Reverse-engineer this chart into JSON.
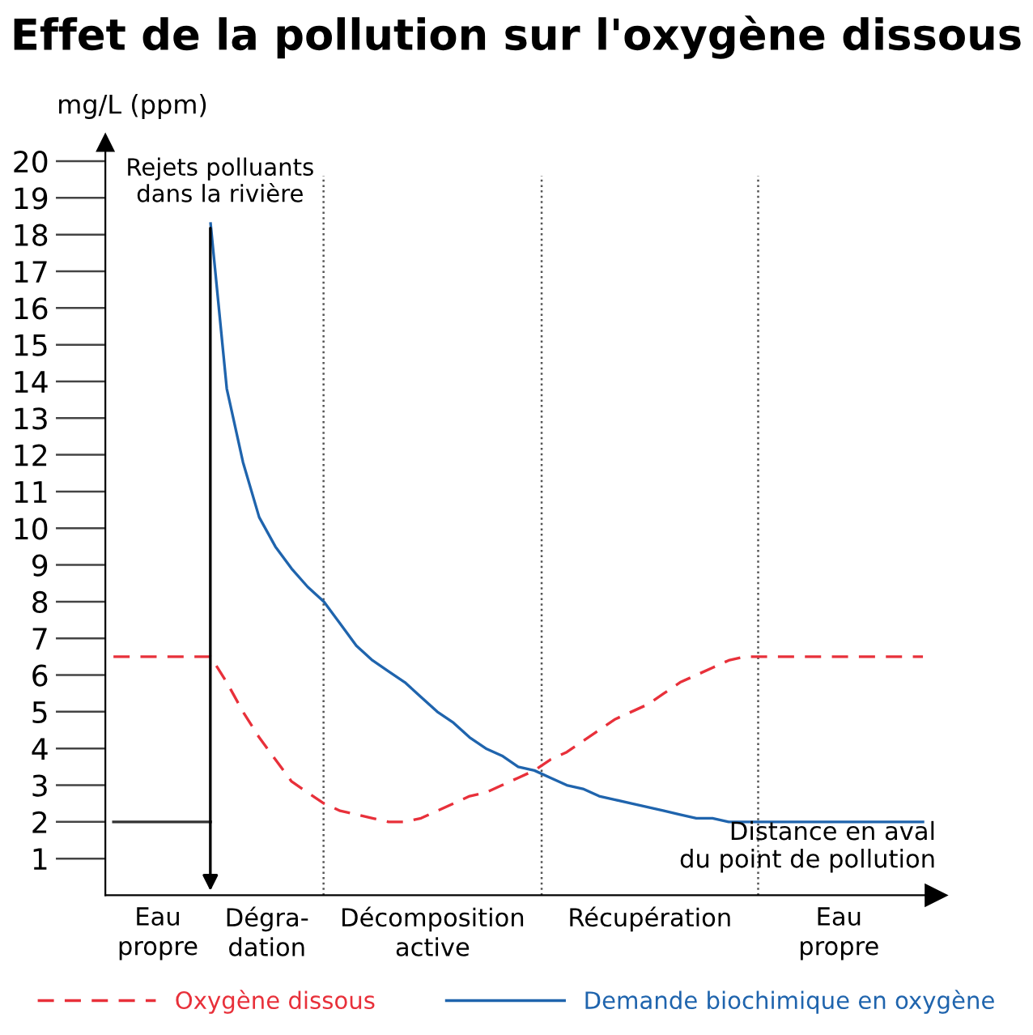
{
  "chart_data": {
    "type": "line",
    "title": "Effet de la pollution sur l'oxygène dissous",
    "ylabel": "mg/L (ppm)",
    "xlabel": "Distance en aval\ndu point de pollution",
    "categories": [
      null,
      null,
      null,
      null,
      null,
      null,
      null,
      null,
      null,
      null,
      null,
      null,
      null,
      null,
      null,
      null,
      null,
      null,
      null,
      null,
      null,
      null,
      null,
      null,
      null,
      null,
      null,
      null,
      null,
      null,
      null,
      null,
      null,
      null,
      null,
      null,
      null,
      null,
      null,
      null,
      null,
      null,
      null,
      null,
      null,
      null,
      null,
      null,
      null,
      null,
      null
    ],
    "ylim": [
      0,
      20.5
    ],
    "yticks": [
      1,
      2,
      3,
      4,
      5,
      6,
      7,
      8,
      9,
      10,
      11,
      12,
      13,
      14,
      15,
      16,
      17,
      18,
      19,
      20
    ],
    "grid": false,
    "legend": "bottom",
    "marker": "none",
    "series": [
      {
        "name": "Oxygène dissous",
        "color": "#e8303a",
        "line_style": "dashed",
        "values": [
          6.5,
          6.5,
          6.5,
          6.5,
          6.5,
          6.5,
          6.5,
          5.8,
          5.0,
          4.3,
          3.7,
          3.1,
          2.8,
          2.5,
          2.3,
          2.2,
          2.1,
          2.0,
          2.0,
          2.1,
          2.3,
          2.5,
          2.7,
          2.8,
          3.0,
          3.2,
          3.4,
          3.7,
          3.9,
          4.2,
          4.5,
          4.8,
          5.0,
          5.2,
          5.5,
          5.8,
          6.0,
          6.2,
          6.4,
          6.5,
          6.5,
          6.5,
          6.5,
          6.5,
          6.5,
          6.5,
          6.5,
          6.5,
          6.5,
          6.5,
          6.5
        ]
      },
      {
        "name": "Demande biochimique en oxygène",
        "color": "#1f64ad",
        "line_style": "solid",
        "values": [
          null,
          null,
          null,
          null,
          null,
          null,
          18.3,
          13.8,
          11.8,
          10.3,
          9.5,
          8.9,
          8.4,
          8.0,
          7.4,
          6.8,
          6.4,
          6.1,
          5.8,
          5.4,
          5.0,
          4.7,
          4.3,
          4.0,
          3.8,
          3.5,
          3.4,
          3.2,
          3.0,
          2.9,
          2.7,
          2.6,
          2.5,
          2.4,
          2.3,
          2.2,
          2.1,
          2.1,
          2.0,
          2.0,
          2.0,
          2.0,
          2.0,
          2.0,
          2.0,
          2.0,
          2.0,
          2.0,
          2.0,
          2.0,
          2.0
        ]
      },
      {
        "color": "#333333",
        "line_style": "solid",
        "values": [
          2,
          2,
          2,
          2,
          2,
          2,
          2,
          null,
          null,
          null,
          null,
          null,
          null,
          null,
          null,
          null,
          null,
          null,
          null,
          null,
          null,
          null,
          null,
          null,
          null,
          null,
          null,
          null,
          null,
          null,
          null,
          null,
          null,
          null,
          null,
          null,
          null,
          null,
          null,
          null,
          null,
          null,
          null,
          null,
          null,
          null,
          null,
          null,
          null,
          null,
          null
        ]
      }
    ],
    "annotations": [
      "Rejets polluants\ndans la rivière",
      "Eau\npropre",
      "Dégra-\ndation",
      "Décomposition\nactive",
      "Récupération",
      "Eau\npropre"
    ]
  }
}
